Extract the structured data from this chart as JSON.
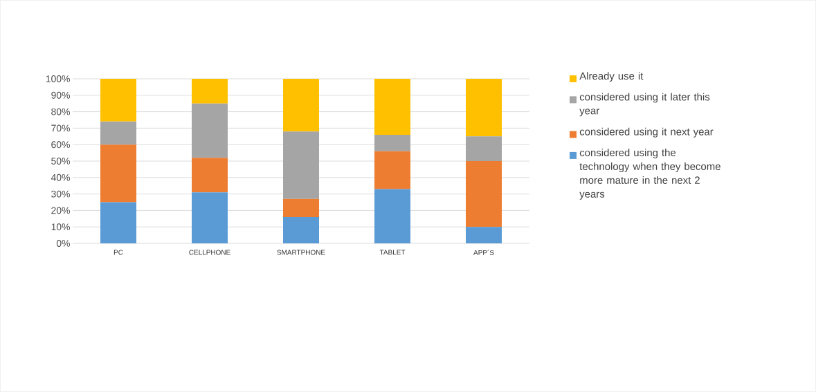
{
  "chart_data": {
    "type": "bar",
    "stacked": true,
    "categories": [
      "PC",
      "CELLPHONE",
      "SMARTPHONE",
      "TABLET",
      "APP´S"
    ],
    "series": [
      {
        "name": "considered using the technology when they become more mature in the next 2 years",
        "color": "#5b9bd5",
        "values": [
          25,
          31,
          16,
          33,
          10
        ]
      },
      {
        "name": "considered using it next year",
        "color": "#ed7d31",
        "values": [
          35,
          21,
          11,
          23,
          40
        ]
      },
      {
        "name": "considered using it later this year",
        "color": "#a5a5a5",
        "values": [
          14,
          33,
          41,
          10,
          15
        ]
      },
      {
        "name": "Already use it",
        "color": "#ffc000",
        "values": [
          26,
          15,
          32,
          34,
          35
        ]
      }
    ],
    "ylim": [
      0,
      100
    ],
    "yticks": [
      {
        "value": 0,
        "label": "0%"
      },
      {
        "value": 10,
        "label": "10%"
      },
      {
        "value": 20,
        "label": "20%"
      },
      {
        "value": 30,
        "label": "30%"
      },
      {
        "value": 40,
        "label": "40%"
      },
      {
        "value": 50,
        "label": "50%"
      },
      {
        "value": 60,
        "label": "60%"
      },
      {
        "value": 70,
        "label": "70%"
      },
      {
        "value": 80,
        "label": "80%"
      },
      {
        "value": 90,
        "label": "90%"
      },
      {
        "value": 100,
        "label": "100%"
      }
    ],
    "grid": "y",
    "legend": "right"
  }
}
